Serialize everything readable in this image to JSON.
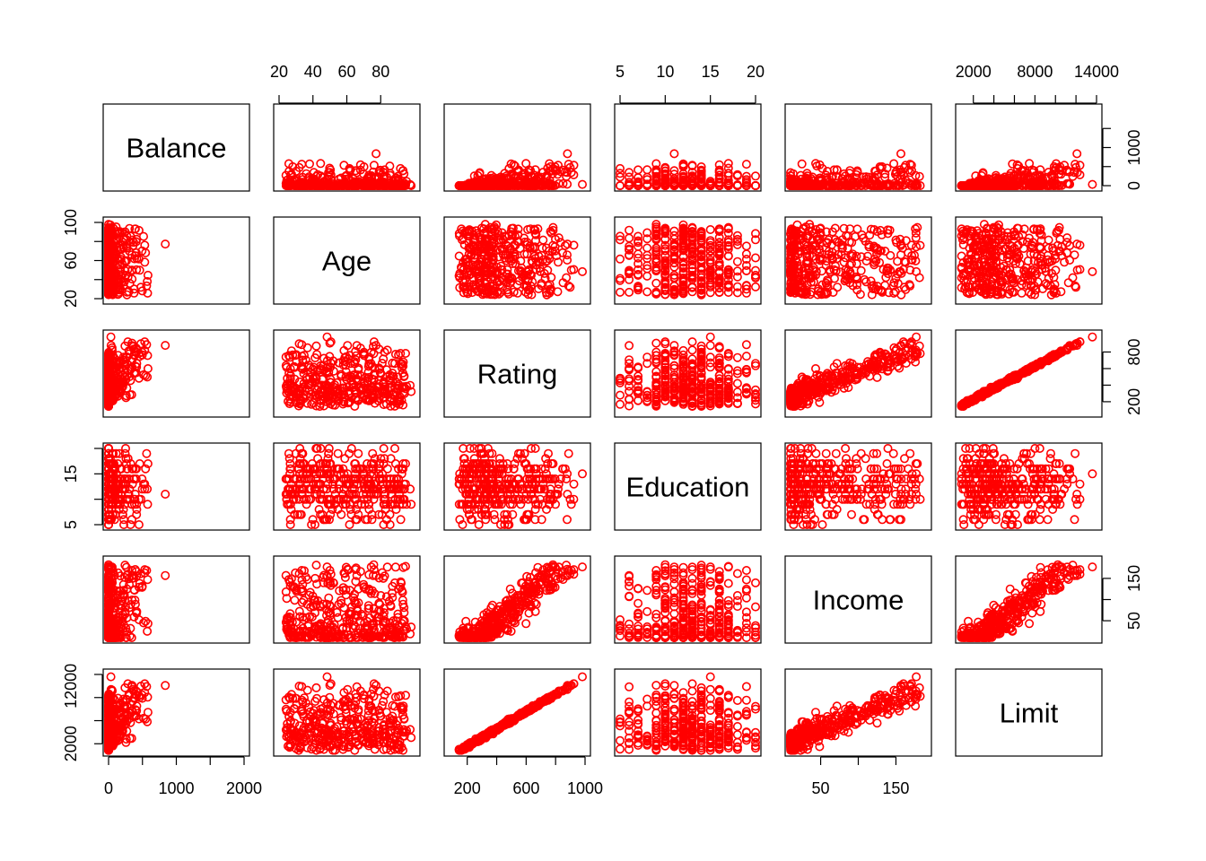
{
  "chart_data": {
    "type": "scatter",
    "kind": "scatterplot-matrix",
    "point_color": "#ff0000",
    "variables": [
      {
        "name": "Balance",
        "range": [
          0,
          2000
        ],
        "ticks": [
          0,
          1000,
          2000
        ],
        "tick_side": "bottom"
      },
      {
        "name": "Age",
        "range": [
          20,
          100
        ],
        "ticks": [
          20,
          60,
          100
        ],
        "tick_side": "left"
      },
      {
        "name": "Rating",
        "range": [
          80,
          1000
        ],
        "ticks": [
          200,
          600,
          1000
        ],
        "tick_side": "bottom"
      },
      {
        "name": "Education",
        "range": [
          5,
          20
        ],
        "ticks": [
          5,
          15
        ],
        "tick_side": "left"
      },
      {
        "name": "Income",
        "range": [
          10,
          190
        ],
        "ticks": [
          50,
          150
        ],
        "tick_side": "bottom"
      },
      {
        "name": "Limit",
        "range": [
          800,
          14000
        ],
        "ticks": [
          2000,
          12000
        ],
        "tick_side": "left"
      }
    ],
    "outer_ticks": {
      "top": [
        {
          "var": 1,
          "ticks": [
            20,
            40,
            60,
            80
          ]
        },
        {
          "var": 3,
          "ticks": [
            5,
            10,
            15,
            20
          ]
        },
        {
          "var": 5,
          "ticks": [
            2000,
            8000,
            14000
          ],
          "minor": [
            2000,
            4000,
            6000,
            8000,
            10000,
            12000,
            14000
          ]
        }
      ],
      "right": [
        {
          "var": 0,
          "ticks": [
            0,
            1000
          ],
          "minor": [
            0,
            500,
            1000,
            1500
          ]
        },
        {
          "var": 2,
          "ticks": [
            200,
            800
          ],
          "minor": [
            200,
            400,
            600,
            800
          ]
        },
        {
          "var": 4,
          "ticks": [
            50,
            150
          ],
          "minor": [
            50,
            100,
            150
          ]
        }
      ],
      "bottom": [
        {
          "var": 0,
          "ticks": [
            0,
            1000,
            2000
          ],
          "minor": [
            0,
            500,
            1000,
            1500,
            2000
          ]
        },
        {
          "var": 2,
          "ticks": [
            200,
            600,
            1000
          ],
          "minor": [
            200,
            400,
            600,
            800,
            1000
          ]
        },
        {
          "var": 4,
          "ticks": [
            50,
            150
          ],
          "minor": [
            50,
            100,
            150
          ]
        }
      ],
      "left": [
        {
          "var": 1,
          "ticks": [
            20,
            60,
            100
          ],
          "minor": [
            20,
            40,
            60,
            80,
            100
          ]
        },
        {
          "var": 3,
          "ticks": [
            5,
            15
          ],
          "minor": [
            5,
            10,
            15,
            20
          ]
        },
        {
          "var": 5,
          "ticks": [
            2000,
            12000
          ],
          "minor": [
            2000,
            6000,
            10000,
            14000
          ]
        }
      ]
    },
    "tick_labels": {
      "top": [
        [
          "20",
          "40",
          "60",
          "80"
        ],
        [
          "5",
          "10",
          "15",
          "20"
        ],
        [
          "2000",
          "8000",
          "14000"
        ]
      ],
      "right": [
        [
          "0",
          "1000"
        ],
        [
          "200",
          "800"
        ],
        [
          "50",
          "150"
        ]
      ],
      "bottom": [
        [
          "0",
          "1000",
          "2000"
        ],
        [
          "200",
          "600",
          "1000"
        ],
        [
          "50",
          "150"
        ]
      ],
      "left": [
        [
          "20",
          "60",
          "100"
        ],
        [
          "5",
          "15"
        ],
        [
          "2000",
          "12000"
        ]
      ]
    },
    "n_points": 400,
    "grid": false
  }
}
